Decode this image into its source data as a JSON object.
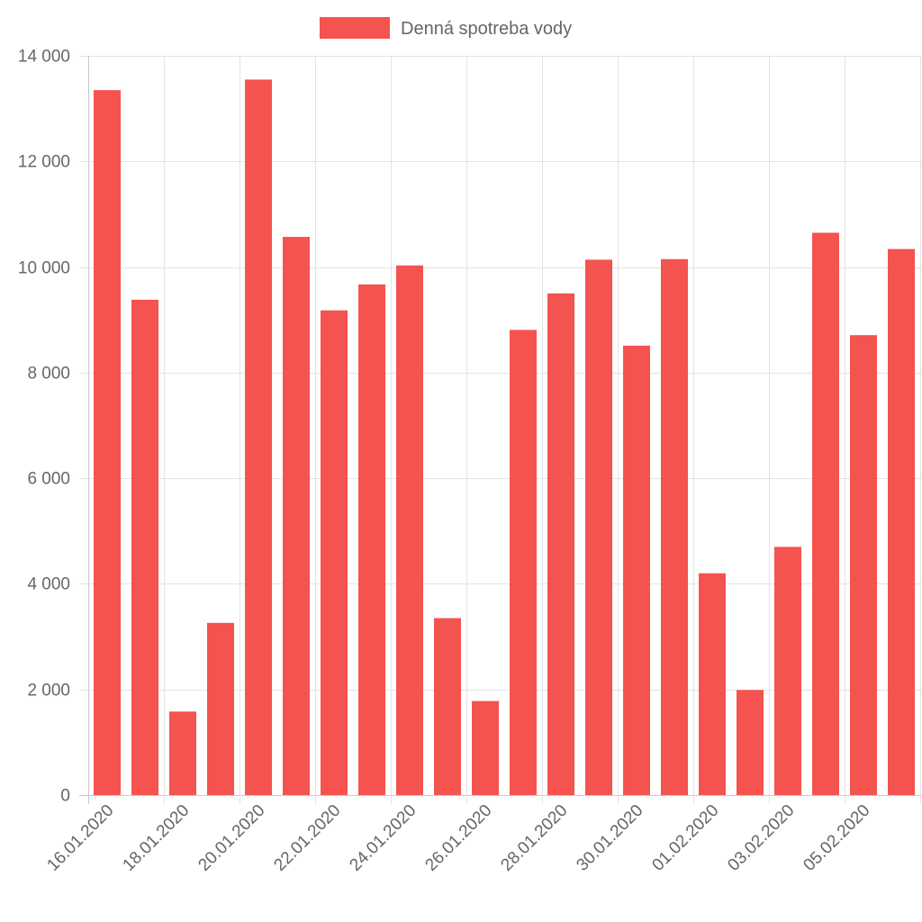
{
  "chart_data": {
    "type": "bar",
    "legend": {
      "position": "top",
      "label": "Denná spotreba vody"
    },
    "color": "#f4534f",
    "categories": [
      "16.01.2020",
      "17.01.2020",
      "18.01.2020",
      "19.01.2020",
      "20.01.2020",
      "21.01.2020",
      "22.01.2020",
      "23.01.2020",
      "24.01.2020",
      "25.01.2020",
      "26.01.2020",
      "27.01.2020",
      "28.01.2020",
      "29.01.2020",
      "30.01.2020",
      "31.01.2020",
      "01.02.2020",
      "02.02.2020",
      "03.02.2020",
      "04.02.2020",
      "05.02.2020",
      "06.02.2020"
    ],
    "x_tick_labels": [
      "16.01.2020",
      "18.01.2020",
      "20.01.2020",
      "22.01.2020",
      "24.01.2020",
      "26.01.2020",
      "28.01.2020",
      "30.01.2020",
      "01.02.2020",
      "03.02.2020",
      "05.02.2020"
    ],
    "values": [
      13350,
      9380,
      1580,
      3260,
      13550,
      10570,
      9180,
      9670,
      10030,
      3350,
      1780,
      8810,
      9500,
      10140,
      8510,
      10150,
      4200,
      1990,
      4700,
      10650,
      8710,
      10340
    ],
    "ylim": [
      0,
      14000
    ],
    "y_ticks": [
      0,
      2000,
      4000,
      6000,
      8000,
      10000,
      12000,
      14000
    ],
    "y_tick_labels": [
      "0",
      "2 000",
      "4 000",
      "6 000",
      "8 000",
      "10 000",
      "12 000",
      "14 000"
    ],
    "grid": true,
    "title": "",
    "xlabel": "",
    "ylabel": ""
  }
}
